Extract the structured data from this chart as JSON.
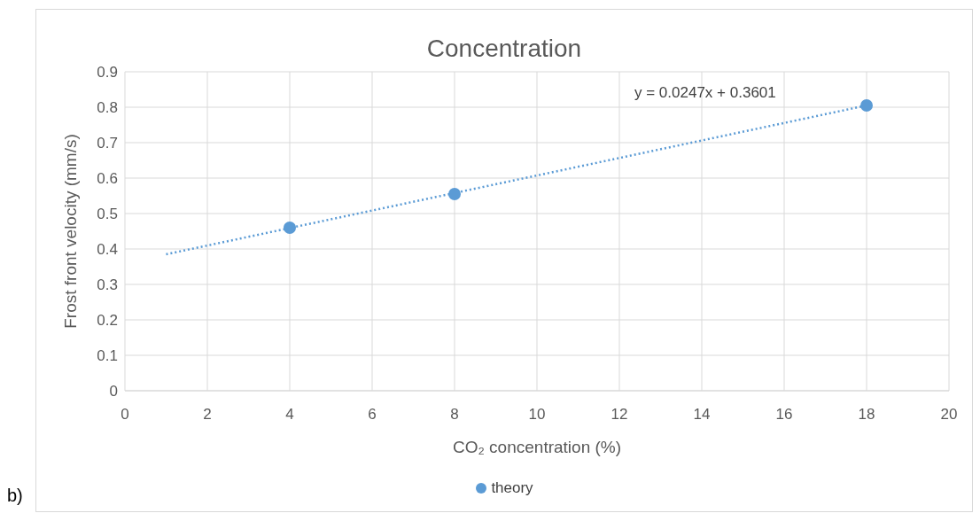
{
  "chart_data": {
    "type": "scatter",
    "title": "Concentration",
    "xlabel": "CO₂ concentration (%)",
    "ylabel": "Frost front velocity (mm/s)",
    "xlim": [
      0,
      20
    ],
    "xticks": [
      0,
      2,
      4,
      6,
      8,
      10,
      12,
      14,
      16,
      18,
      20
    ],
    "ylim": [
      0,
      0.9
    ],
    "yticks": [
      0,
      0.1,
      0.2,
      0.3,
      0.4,
      0.5,
      0.6,
      0.7,
      0.8,
      0.9
    ],
    "grid": true,
    "legend": "bottom",
    "series": [
      {
        "name": "theory",
        "marker": "circle",
        "color": "#5b9bd5",
        "x": [
          4,
          8,
          18
        ],
        "values": [
          0.46,
          0.555,
          0.805
        ]
      },
      {
        "type": "line",
        "marker": "none",
        "line_style": "dotted",
        "color": "#5b9bd5",
        "x": [
          1,
          18
        ],
        "values": [
          0.385,
          0.805
        ]
      }
    ],
    "annotations": [
      "y = 0.0247x + 0.3601",
      "b)"
    ]
  }
}
